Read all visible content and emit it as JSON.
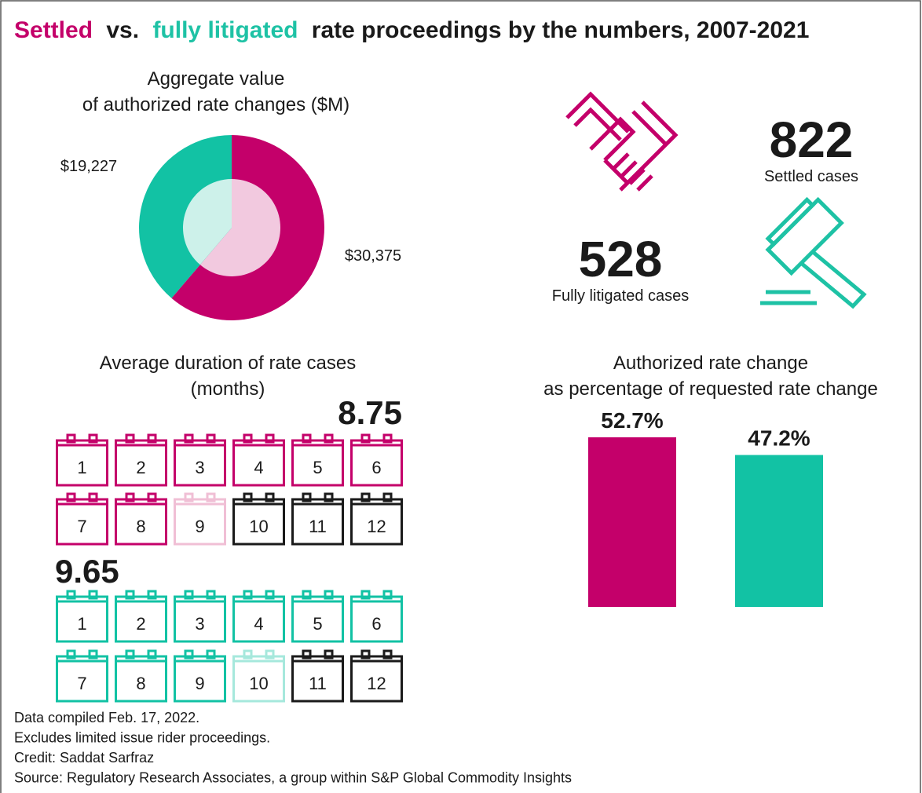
{
  "title": {
    "parts": [
      "Settled",
      "vs.",
      "fully litigated",
      "rate proceedings by the numbers, 2007-2021"
    ],
    "colors": [
      "#c4006a",
      "#1a1a1a",
      "#1ec2a5",
      "#1a1a1a"
    ]
  },
  "chart_data": [
    {
      "type": "pie",
      "title": [
        "Aggregate value",
        "of authorized rate changes ($M)"
      ],
      "values": [
        30375,
        19227
      ],
      "value_labels": [
        "$30,375",
        "$19,227"
      ],
      "colors": [
        "#c4006a",
        "#12c2a4"
      ],
      "inner_colors": [
        "#f2c9df",
        "#cdf1ea"
      ]
    },
    {
      "type": "calendar",
      "title": [
        "Average duration of rate cases",
        "(months)"
      ],
      "months": [
        1,
        2,
        3,
        4,
        5,
        6,
        7,
        8,
        9,
        10,
        11,
        12
      ],
      "series": [
        {
          "values": [
            8.75
          ],
          "color": "#c4006a",
          "partial_color": "#f0bfd5"
        },
        {
          "values": [
            9.65
          ],
          "color": "#12c2a4",
          "partial_color": "#a6e8dc"
        }
      ],
      "empty_color": "#1a1a1a"
    },
    {
      "type": "bar",
      "title": [
        "Authorized rate change",
        "as  percentage of requested rate change"
      ],
      "values": [
        52.7,
        47.2
      ],
      "value_labels": [
        "52.7%",
        "47.2%"
      ],
      "colors": [
        "#c4006a",
        "#12c2a4"
      ]
    }
  ],
  "stats": [
    {
      "value": 822,
      "label": "Settled cases",
      "color": "#c4006a"
    },
    {
      "value": 528,
      "label": "Fully litigated cases",
      "color": "#1ec2a5"
    }
  ],
  "notes": [
    "Data compiled Feb. 17, 2022.",
    "Excludes limited issue rider proceedings.",
    "Credit: Saddat Sarfraz",
    "Source: Regulatory Research Associates, a group within S&P Global Commodity Insights"
  ]
}
